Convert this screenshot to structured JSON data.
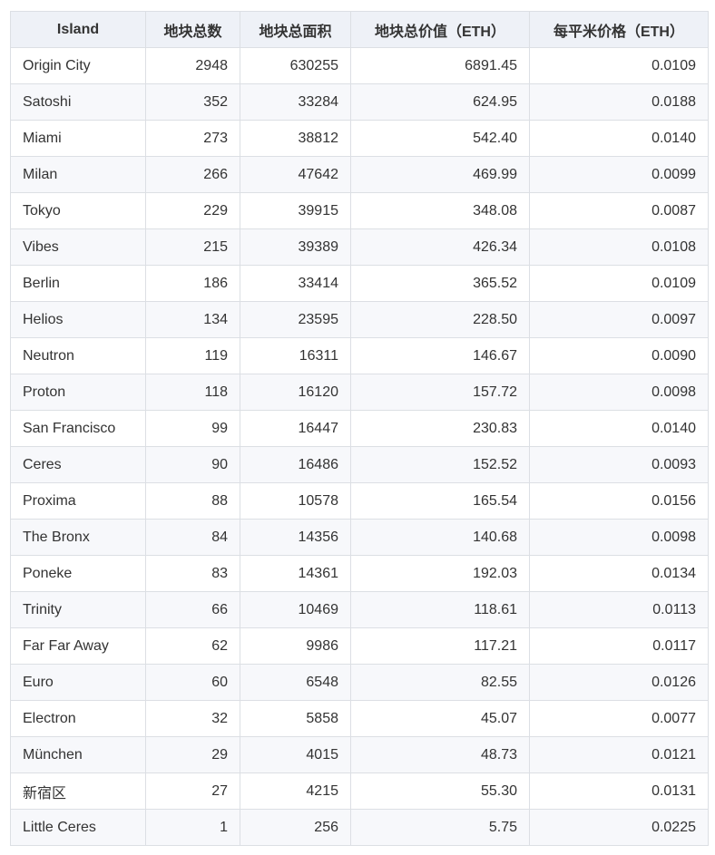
{
  "table": {
    "headers": [
      "Island",
      "地块总数",
      "地块总面积",
      "地块总价值（ETH）",
      "每平米价格（ETH）"
    ],
    "rows": [
      [
        "Origin City",
        "2948",
        "630255",
        "6891.45",
        "0.0109"
      ],
      [
        "Satoshi",
        "352",
        "33284",
        "624.95",
        "0.0188"
      ],
      [
        "Miami",
        "273",
        "38812",
        "542.40",
        "0.0140"
      ],
      [
        "Milan",
        "266",
        "47642",
        "469.99",
        "0.0099"
      ],
      [
        "Tokyo",
        "229",
        "39915",
        "348.08",
        "0.0087"
      ],
      [
        "Vibes",
        "215",
        "39389",
        "426.34",
        "0.0108"
      ],
      [
        "Berlin",
        "186",
        "33414",
        "365.52",
        "0.0109"
      ],
      [
        "Helios",
        "134",
        "23595",
        "228.50",
        "0.0097"
      ],
      [
        "Neutron",
        "119",
        "16311",
        "146.67",
        "0.0090"
      ],
      [
        "Proton",
        "118",
        "16120",
        "157.72",
        "0.0098"
      ],
      [
        "San Francisco",
        "99",
        "16447",
        "230.83",
        "0.0140"
      ],
      [
        "Ceres",
        "90",
        "16486",
        "152.52",
        "0.0093"
      ],
      [
        "Proxima",
        "88",
        "10578",
        "165.54",
        "0.0156"
      ],
      [
        "The Bronx",
        "84",
        "14356",
        "140.68",
        "0.0098"
      ],
      [
        "Poneke",
        "83",
        "14361",
        "192.03",
        "0.0134"
      ],
      [
        "Trinity",
        "66",
        "10469",
        "118.61",
        "0.0113"
      ],
      [
        "Far Far Away",
        "62",
        "9986",
        "117.21",
        "0.0117"
      ],
      [
        "Euro",
        "60",
        "6548",
        "82.55",
        "0.0126"
      ],
      [
        "Electron",
        "32",
        "5858",
        "45.07",
        "0.0077"
      ],
      [
        "München",
        "29",
        "4015",
        "48.73",
        "0.0121"
      ],
      [
        "新宿区",
        "27",
        "4215",
        "55.30",
        "0.0131"
      ],
      [
        "Little Ceres",
        "1",
        "256",
        "5.75",
        "0.0225"
      ]
    ]
  }
}
